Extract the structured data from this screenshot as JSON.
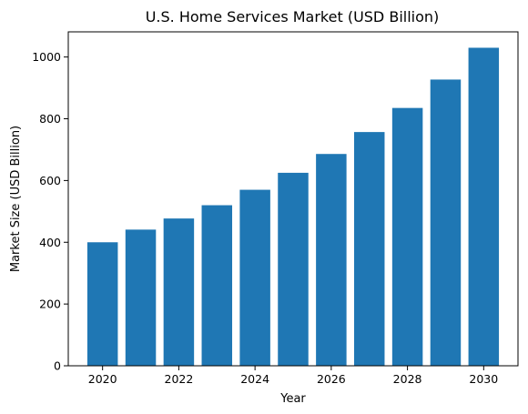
{
  "chart_data": {
    "type": "bar",
    "title": "U.S. Home Services Market (USD Billion)",
    "xlabel": "Year",
    "ylabel": "Market Size (USD Billion)",
    "categories": [
      2020,
      2021,
      2022,
      2023,
      2024,
      2025,
      2026,
      2027,
      2028,
      2029,
      2030
    ],
    "values": [
      400,
      441,
      477,
      520,
      570,
      625,
      686,
      757,
      835,
      927,
      1030
    ],
    "x_ticks": [
      2020,
      2022,
      2024,
      2026,
      2028,
      2030
    ],
    "y_ticks": [
      0,
      200,
      400,
      600,
      800,
      1000
    ],
    "xlim": [
      2019.1,
      2030.9
    ],
    "ylim": [
      0,
      1081.5
    ],
    "bar_color": "#1f77b4",
    "grid": false,
    "legend": "none"
  }
}
